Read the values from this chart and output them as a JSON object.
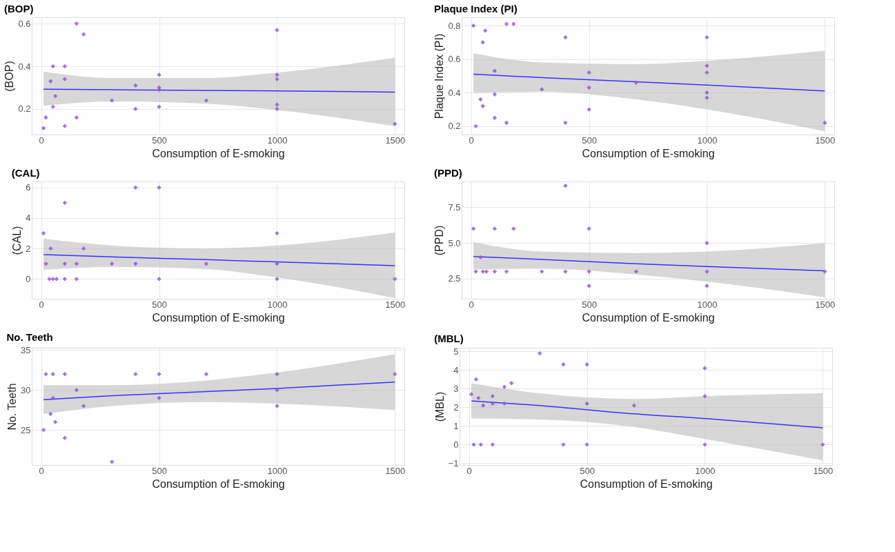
{
  "chart_data": [
    {
      "type": "scatter",
      "title": "(BOP)",
      "xlabel": "Consumption of E-smoking",
      "ylabel": "(BOP)",
      "xlim": [
        -40,
        1540
      ],
      "xticks": [
        0,
        500,
        1000,
        1500
      ],
      "ylim": [
        0.08,
        0.63
      ],
      "yticks": [
        0.2,
        0.4,
        0.6
      ],
      "grid": true,
      "marker": "diamond",
      "series": [
        {
          "type": "line",
          "marker": "none",
          "color": "#3333ff",
          "x": [
            10,
            300,
            700,
            1000,
            1500
          ],
          "values": [
            0.293,
            0.29,
            0.287,
            0.285,
            0.279
          ],
          "lower": [
            0.215,
            0.235,
            0.225,
            0.195,
            0.12
          ],
          "upper": [
            0.375,
            0.345,
            0.345,
            0.37,
            0.44
          ]
        },
        {
          "color": "#a050e0",
          "x": [
            10,
            20,
            40,
            50,
            50,
            60,
            100,
            100,
            100,
            150,
            150,
            180,
            300,
            400,
            400,
            500,
            500,
            500,
            500,
            700,
            1000,
            1000,
            1000,
            1000,
            1000,
            1500
          ],
          "values": [
            0.11,
            0.16,
            0.33,
            0.21,
            0.4,
            0.26,
            0.4,
            0.34,
            0.12,
            0.6,
            0.16,
            0.55,
            0.24,
            0.31,
            0.2,
            0.36,
            0.3,
            0.29,
            0.21,
            0.24,
            0.57,
            0.36,
            0.34,
            0.22,
            0.2,
            0.13
          ]
        }
      ]
    },
    {
      "type": "scatter",
      "title": "Plaque Index (PI)",
      "xlabel": "Consumption of E-smoking",
      "ylabel": "Plaque Index (PI)",
      "xlim": [
        -40,
        1540
      ],
      "xticks": [
        0,
        500,
        1000,
        1500
      ],
      "ylim": [
        0.15,
        0.85
      ],
      "yticks": [
        0.2,
        0.4,
        0.6,
        0.8
      ],
      "grid": true,
      "marker": "diamond",
      "series": [
        {
          "type": "line",
          "marker": "none",
          "color": "#3333ff",
          "x": [
            10,
            300,
            700,
            1000,
            1500
          ],
          "values": [
            0.51,
            0.49,
            0.465,
            0.445,
            0.41
          ],
          "lower": [
            0.4,
            0.405,
            0.36,
            0.3,
            0.17
          ],
          "upper": [
            0.635,
            0.58,
            0.57,
            0.59,
            0.65
          ]
        },
        {
          "color": "#a050e0",
          "x": [
            10,
            20,
            40,
            50,
            50,
            60,
            100,
            100,
            100,
            150,
            150,
            180,
            300,
            400,
            400,
            500,
            500,
            500,
            700,
            1000,
            1000,
            1000,
            1000,
            1000,
            1500
          ],
          "values": [
            0.8,
            0.2,
            0.36,
            0.32,
            0.7,
            0.77,
            0.53,
            0.39,
            0.25,
            0.81,
            0.22,
            0.81,
            0.42,
            0.73,
            0.22,
            0.52,
            0.43,
            0.3,
            0.46,
            0.73,
            0.56,
            0.52,
            0.4,
            0.37,
            0.22
          ]
        }
      ]
    },
    {
      "type": "scatter",
      "title": "(CAL)",
      "xlabel": "Consumption of E-smoking",
      "ylabel": "(CAL)",
      "xlim": [
        -40,
        1540
      ],
      "xticks": [
        0,
        500,
        1000,
        1500
      ],
      "ylim": [
        -1.3,
        6.4
      ],
      "yticks": [
        0,
        2,
        4,
        6
      ],
      "grid": true,
      "marker": "diamond",
      "series": [
        {
          "type": "line",
          "marker": "none",
          "color": "#3333ff",
          "x": [
            10,
            300,
            700,
            1000,
            1500
          ],
          "values": [
            1.6,
            1.45,
            1.27,
            1.12,
            0.87
          ],
          "lower": [
            0.6,
            0.8,
            0.65,
            0.1,
            -1.25
          ],
          "upper": [
            2.65,
            2.2,
            2.0,
            2.2,
            3.05
          ]
        },
        {
          "color": "#a050e0",
          "x": [
            10,
            20,
            40,
            35,
            50,
            65,
            100,
            100,
            100,
            150,
            150,
            180,
            300,
            400,
            400,
            500,
            500,
            700,
            1000,
            1000,
            1000,
            1500
          ],
          "values": [
            3,
            1,
            2,
            0,
            0,
            0,
            5,
            1,
            0,
            1,
            0,
            2,
            1,
            6,
            1,
            6,
            0,
            1,
            3,
            1,
            0,
            0
          ]
        }
      ]
    },
    {
      "type": "scatter",
      "title": "(PPD)",
      "xlabel": "Consumption of E-smoking",
      "ylabel": "(PPD)",
      "xlim": [
        -40,
        1540
      ],
      "xticks": [
        0,
        500,
        1000,
        1500
      ],
      "ylim": [
        1.1,
        9.3
      ],
      "yticks": [
        {
          "value": 2.5,
          "label": "2.5"
        },
        {
          "value": 5,
          "label": "5.0"
        },
        {
          "value": 7.5,
          "label": "7.5"
        }
      ],
      "grid": true,
      "marker": "diamond",
      "series": [
        {
          "type": "line",
          "marker": "none",
          "color": "#3333ff",
          "x": [
            10,
            300,
            700,
            1000,
            1500
          ],
          "values": [
            4.05,
            3.85,
            3.55,
            3.35,
            3.05
          ],
          "lower": [
            3.15,
            3.2,
            2.8,
            2.3,
            1.2
          ],
          "upper": [
            5.05,
            4.4,
            4.3,
            4.4,
            5.0
          ]
        },
        {
          "color": "#a050e0",
          "x": [
            10,
            20,
            40,
            50,
            65,
            100,
            100,
            150,
            180,
            300,
            400,
            400,
            500,
            500,
            500,
            700,
            1000,
            1000,
            1000,
            1500
          ],
          "values": [
            6,
            3,
            4,
            3,
            3,
            6,
            3,
            3,
            6,
            3,
            9,
            3,
            6,
            3,
            2,
            3,
            5,
            3,
            2,
            3
          ]
        }
      ]
    },
    {
      "type": "scatter",
      "title": "No. Teeth",
      "xlabel": "Consumption of E-smoking",
      "ylabel": "No. Teeth",
      "xlim": [
        -40,
        1540
      ],
      "xticks": [
        0,
        500,
        1000,
        1500
      ],
      "ylim": [
        20.6,
        35.3
      ],
      "yticks": [
        25,
        30,
        35
      ],
      "grid": true,
      "marker": "diamond",
      "series": [
        {
          "type": "line",
          "marker": "none",
          "color": "#3333ff",
          "x": [
            10,
            300,
            700,
            1000,
            1500
          ],
          "values": [
            28.8,
            29.3,
            29.8,
            30.2,
            31.0
          ],
          "lower": [
            27.0,
            28.0,
            28.5,
            28.3,
            27.5
          ],
          "upper": [
            30.6,
            30.6,
            31.2,
            32.2,
            34.5
          ]
        },
        {
          "color": "#a050e0",
          "x": [
            10,
            20,
            40,
            50,
            50,
            60,
            100,
            100,
            150,
            180,
            300,
            400,
            500,
            500,
            700,
            1000,
            1000,
            1000,
            1500
          ],
          "values": [
            25,
            32,
            27,
            29,
            32,
            26,
            32,
            24,
            30,
            28,
            21,
            32,
            32,
            29,
            32,
            32,
            30,
            28,
            32
          ]
        }
      ]
    },
    {
      "type": "scatter",
      "title": "(MBL)",
      "xlabel": "Consumption of E-smoking",
      "ylabel": "(MBL)",
      "xlim": [
        -40,
        1540
      ],
      "xticks": [
        0,
        500,
        1000,
        1500
      ],
      "ylim": [
        -1.1,
        5.2
      ],
      "yticks": [
        -1,
        0,
        1,
        2,
        3,
        4,
        5
      ],
      "grid": true,
      "marker": "diamond",
      "series": [
        {
          "type": "line",
          "marker": "none",
          "color": "#3333ff",
          "x": [
            10,
            300,
            700,
            1000,
            1500
          ],
          "values": [
            2.35,
            2.1,
            1.65,
            1.4,
            0.9
          ],
          "lower": [
            1.4,
            1.35,
            0.95,
            0.3,
            -0.85
          ],
          "upper": [
            3.3,
            2.75,
            2.45,
            2.6,
            2.75
          ]
        },
        {
          "color": "#a050e0",
          "x": [
            10,
            20,
            30,
            40,
            50,
            60,
            100,
            100,
            100,
            150,
            150,
            180,
            300,
            400,
            400,
            500,
            500,
            500,
            700,
            1000,
            1000,
            1000,
            1500
          ],
          "values": [
            2.7,
            0,
            3.5,
            2.5,
            0,
            2.1,
            2.6,
            2.2,
            0,
            3.1,
            2.2,
            3.3,
            4.9,
            4.3,
            0,
            4.3,
            2.2,
            0,
            2.1,
            4.1,
            2.6,
            0,
            0
          ]
        }
      ]
    }
  ]
}
